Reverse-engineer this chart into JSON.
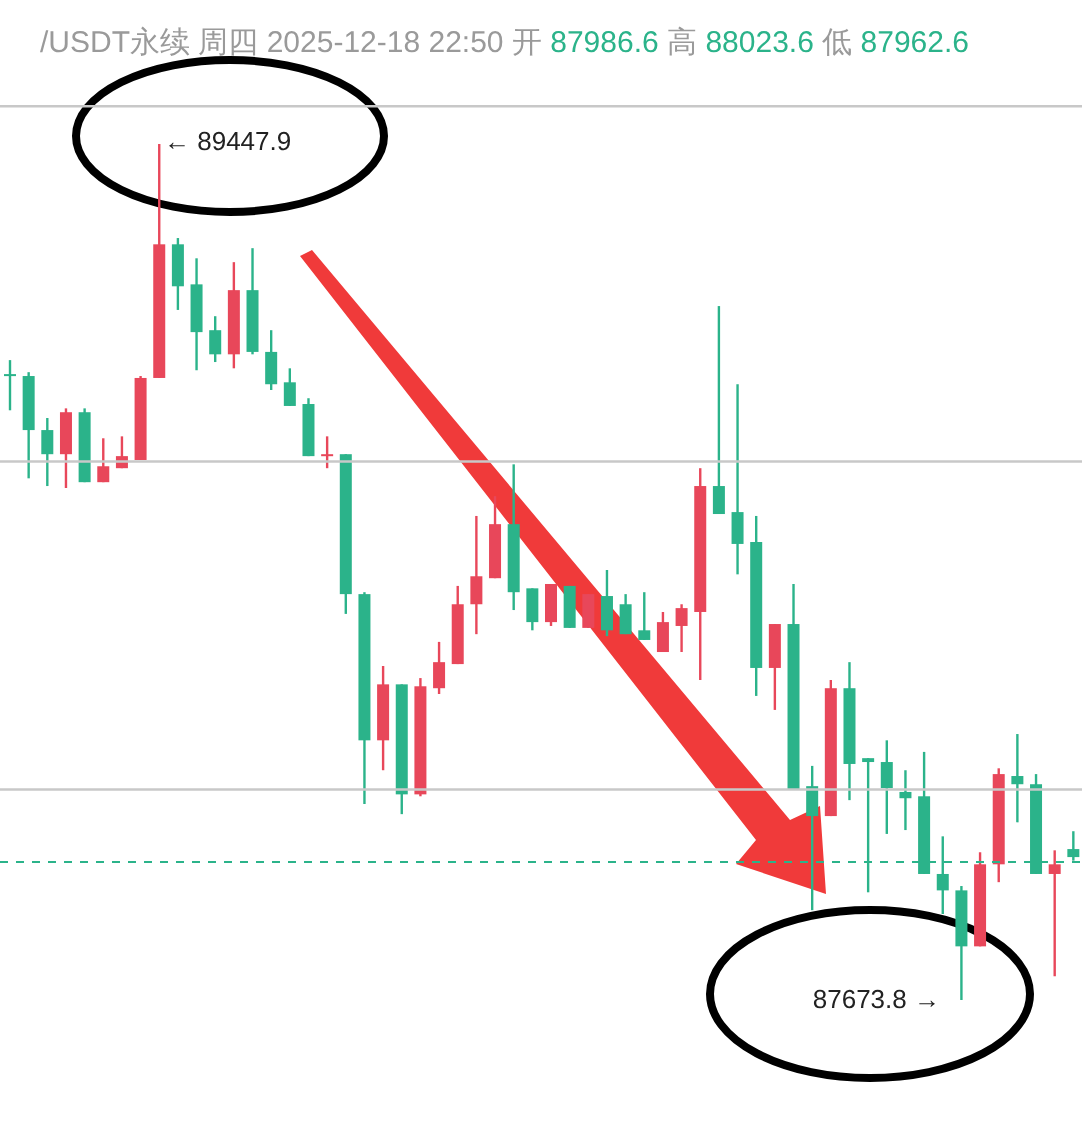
{
  "chart_data": {
    "type": "candlestick",
    "title": "/USDT永续 周四 2025-12-18 22:50",
    "subtitle": "开 87986.6 高 88023.6 低 87962.6",
    "categories": [
      null,
      null,
      null,
      null,
      null,
      null,
      null,
      null,
      null,
      null,
      null,
      null,
      null,
      null,
      null,
      null,
      null,
      null,
      null,
      null,
      null,
      null,
      null,
      null,
      null,
      null,
      null,
      null,
      null,
      null,
      null,
      null,
      null,
      null,
      null,
      null,
      null,
      null,
      null,
      null,
      null,
      null,
      null,
      null,
      null,
      null,
      null,
      null,
      null,
      null,
      null,
      null,
      null,
      null,
      null,
      null,
      null,
      null
    ],
    "ohlc": [
      [
        88971,
        89000,
        88896,
        88967
      ],
      [
        88967,
        88975,
        88755,
        88855
      ],
      [
        88855,
        88880,
        88739,
        88805
      ],
      [
        88805,
        88900,
        88735,
        88892
      ],
      [
        88892,
        88900,
        88747,
        88747
      ],
      [
        88747,
        88838,
        88747,
        88780
      ],
      [
        88776,
        88842,
        88776,
        88801
      ],
      [
        88793,
        88967,
        88793,
        88963
      ],
      [
        88963,
        89447.9,
        88963,
        89240
      ],
      [
        89240,
        89253,
        89104,
        89153
      ],
      [
        89157,
        89211,
        88979,
        89058
      ],
      [
        89062,
        89091,
        88996,
        89012
      ],
      [
        89012,
        89203,
        88983,
        89145
      ],
      [
        89145,
        89232,
        89012,
        89017
      ],
      [
        89017,
        89062,
        88938,
        88950
      ],
      [
        88954,
        88983,
        88905,
        88905
      ],
      [
        88909,
        88921,
        88801,
        88801
      ],
      [
        88801,
        88842,
        88776,
        88805
      ],
      [
        88805,
        88805,
        88474,
        88515
      ],
      [
        88515,
        88519,
        88080,
        88212
      ],
      [
        88212,
        88366,
        88150,
        88328
      ],
      [
        88328,
        88328,
        88059,
        88100
      ],
      [
        88100,
        88341,
        88096,
        88324
      ],
      [
        88320,
        88416,
        88308,
        88374
      ],
      [
        88370,
        88532,
        88370,
        88494
      ],
      [
        88494,
        88677,
        88432,
        88552
      ],
      [
        88548,
        88718,
        88548,
        88660
      ],
      [
        88660,
        88784,
        88482,
        88519
      ],
      [
        88527,
        88527,
        88440,
        88457
      ],
      [
        88457,
        88536,
        88449,
        88536
      ],
      [
        88532,
        88532,
        88445,
        88445
      ],
      [
        88445,
        88515,
        88445,
        88515
      ],
      [
        88511,
        88565,
        88428,
        88440
      ],
      [
        88494,
        88515,
        88432,
        88432
      ],
      [
        88440,
        88519,
        88420,
        88420
      ],
      [
        88395,
        88478,
        88395,
        88457
      ],
      [
        88449,
        88494,
        88395,
        88486
      ],
      [
        88478,
        88776,
        88337,
        88739
      ],
      [
        88739,
        89112,
        88681,
        88681
      ],
      [
        88685,
        88950,
        88556,
        88619
      ],
      [
        88623,
        88677,
        88304,
        88362
      ],
      [
        88362,
        88453,
        88275,
        88453
      ],
      [
        88453,
        88536,
        88109,
        88109
      ],
      [
        88117,
        88159,
        87860,
        88055
      ],
      [
        88055,
        88337,
        88055,
        88320
      ],
      [
        88320,
        88374,
        88088,
        88163
      ],
      [
        88175,
        88175,
        87897,
        88167
      ],
      [
        88167,
        88212,
        88018,
        88113
      ],
      [
        88105,
        88150,
        88026,
        88092
      ],
      [
        88096,
        88188,
        87935,
        87935
      ],
      [
        87935,
        88013,
        87852,
        87901
      ],
      [
        87901,
        87910,
        87673.8,
        87785
      ],
      [
        87785,
        87980,
        87785,
        87955
      ],
      [
        87955,
        88154,
        87918,
        88142
      ],
      [
        88138,
        88225,
        88042,
        88121
      ],
      [
        88121,
        88142,
        87935,
        87935
      ],
      [
        87935,
        87984,
        87723,
        87955
      ],
      [
        87986.6,
        88023.6,
        87962.6,
        87970
      ]
    ],
    "colors": [
      "#2bb38a",
      "#2bb38a",
      "#2bb38a",
      "#e8475a",
      "#2bb38a",
      "#e8475a",
      "#e8475a",
      "#e8475a",
      "#e8475a",
      "#2bb38a",
      "#2bb38a",
      "#2bb38a",
      "#e8475a",
      "#2bb38a",
      "#2bb38a",
      "#2bb38a",
      "#2bb38a",
      "#e8475a",
      "#2bb38a",
      "#2bb38a",
      "#e8475a",
      "#2bb38a",
      "#e8475a",
      "#e8475a",
      "#e8475a",
      "#e8475a",
      "#e8475a",
      "#2bb38a",
      "#2bb38a",
      "#e8475a",
      "#2bb38a",
      "#e8475a",
      "#2bb38a",
      "#2bb38a",
      "#2bb38a",
      "#e8475a",
      "#e8475a",
      "#e8475a",
      "#2bb38a",
      "#2bb38a",
      "#2bb38a",
      "#e8475a",
      "#2bb38a",
      "#2bb38a",
      "#e8475a",
      "#2bb38a",
      "#2bb38a",
      "#2bb38a",
      "#2bb38a",
      "#2bb38a",
      "#2bb38a",
      "#2bb38a",
      "#e8475a",
      "#e8475a",
      "#2bb38a",
      "#2bb38a",
      "#e8475a",
      "#2bb38a"
    ],
    "yticks": [
      {
        "value": 89526,
        "label": null
      },
      {
        "value": 88790,
        "label": null
      },
      {
        "value": 88110,
        "label": null
      }
    ],
    "tick_labels": false,
    "grid": "y",
    "ref_lines": [
      {
        "axis": "y",
        "value": 87960,
        "color": "#2bb38a",
        "line_style": "dashed"
      }
    ],
    "annotations": [
      "← 89447.9",
      "87673.8 →"
    ]
  }
}
